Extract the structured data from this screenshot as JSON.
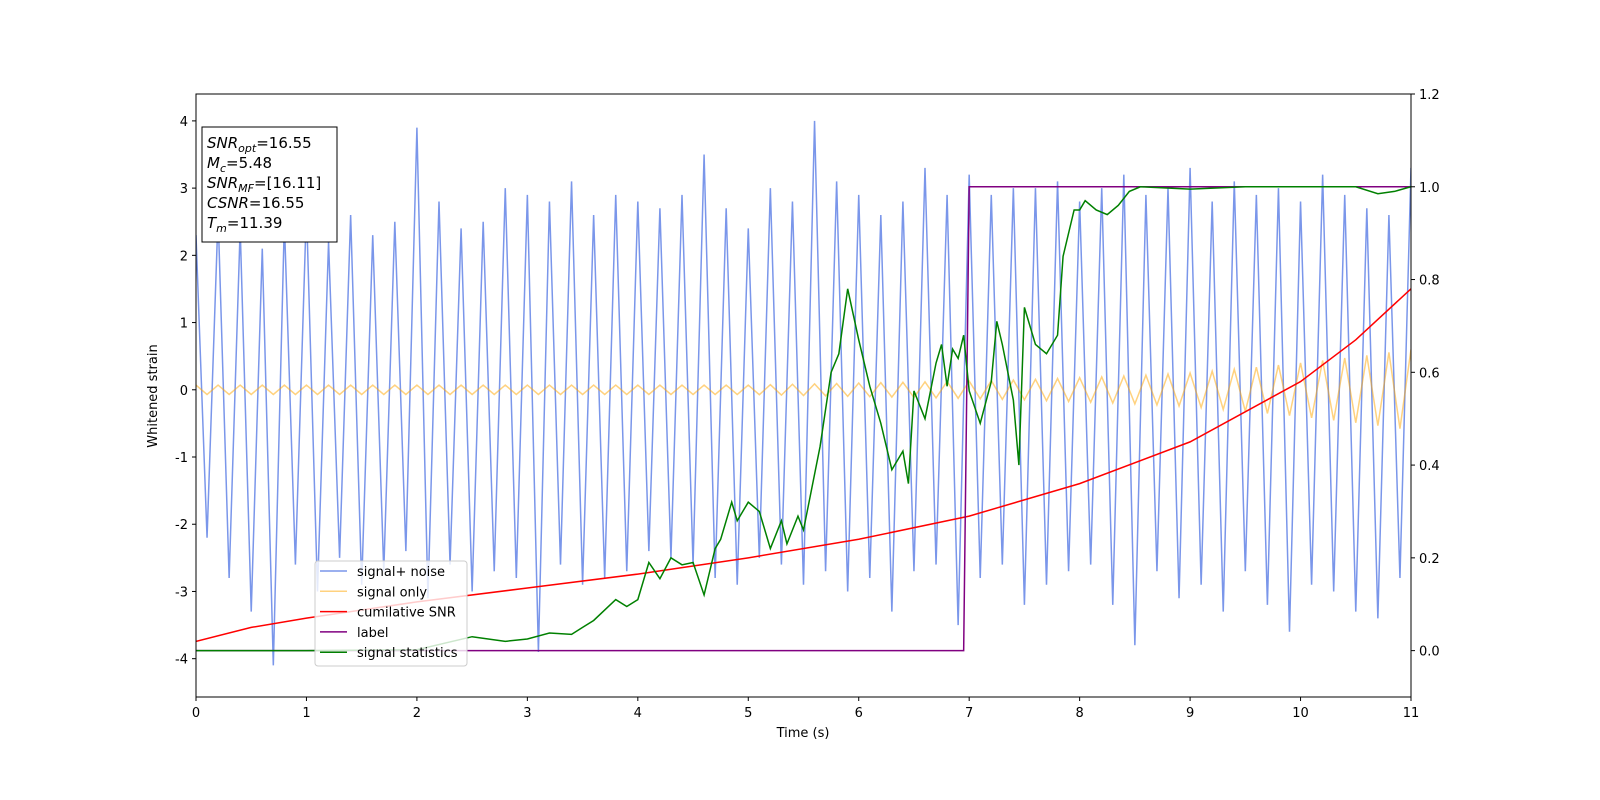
{
  "chart_data": {
    "type": "line",
    "xlabel": "Time (s)",
    "ylabel": "Whitened strain",
    "xlim": [
      0,
      11
    ],
    "xticks": [
      0,
      1,
      2,
      3,
      4,
      5,
      6,
      7,
      8,
      9,
      10,
      11
    ],
    "ylim": [
      -4.57,
      4.4
    ],
    "yticks": [
      -4,
      -3,
      -2,
      -1,
      0,
      1,
      2,
      3,
      4
    ],
    "y2lim": [
      -0.1,
      1.2
    ],
    "y2ticks": [
      {
        "value": 0,
        "label": "0.0"
      },
      0.2,
      0.4,
      0.6,
      0.8,
      {
        "value": 1,
        "label": "1.0"
      },
      1.2
    ],
    "legend": "lower left",
    "x": [
      0,
      0.1,
      0.2,
      0.3,
      0.4,
      0.5,
      0.6,
      0.7,
      0.8,
      0.9,
      1,
      1.1,
      1.2,
      1.3,
      1.4,
      1.5,
      1.6,
      1.7,
      1.8,
      1.9,
      2,
      2.1,
      2.2,
      2.3,
      2.4,
      2.5,
      2.6,
      2.7,
      2.8,
      2.9,
      3,
      3.1,
      3.2,
      3.3,
      3.4,
      3.5,
      3.6,
      3.7,
      3.8,
      3.9,
      4,
      4.1,
      4.2,
      4.3,
      4.4,
      4.5,
      4.6,
      4.7,
      4.8,
      4.9,
      5,
      5.1,
      5.2,
      5.3,
      5.4,
      5.5,
      5.6,
      5.7,
      5.8,
      5.9,
      6,
      6.1,
      6.2,
      6.3,
      6.4,
      6.5,
      6.6,
      6.7,
      6.8,
      6.9,
      7,
      7.1,
      7.2,
      7.3,
      7.4,
      7.5,
      7.6,
      7.7,
      7.8,
      7.9,
      8,
      8.1,
      8.2,
      8.3,
      8.4,
      8.5,
      8.6,
      8.7,
      8.8,
      8.9,
      9,
      9.1,
      9.2,
      9.3,
      9.4,
      9.5,
      9.6,
      9.7,
      9.8,
      9.9,
      10,
      10.1,
      10.2,
      10.3,
      10.4,
      10.5,
      10.6,
      10.7,
      10.8,
      10.9,
      11
    ],
    "series": [
      {
        "name": "signal+ noise",
        "color": "#4169e1",
        "opacity": 0.7,
        "values": [
          2.3,
          -2.2,
          2.6,
          -2.8,
          2.4,
          -3.3,
          2.1,
          -4.1,
          2.5,
          -2.6,
          2.7,
          -3.0,
          2.2,
          -2.5,
          2.6,
          -2.9,
          2.3,
          -2.7,
          2.5,
          -2.4,
          3.9,
          -3.1,
          2.8,
          -2.6,
          2.4,
          -3.0,
          2.5,
          -2.7,
          3.0,
          -2.8,
          2.9,
          -3.9,
          2.8,
          -2.6,
          3.1,
          -2.9,
          2.6,
          -2.8,
          2.9,
          -2.7,
          2.8,
          -2.4,
          2.7,
          -2.5,
          2.9,
          -2.6,
          3.5,
          -2.8,
          2.7,
          -2.9,
          2.4,
          -2.5,
          3.0,
          -2.6,
          2.8,
          -2.9,
          4.0,
          -2.7,
          3.1,
          -3.0,
          2.9,
          -2.8,
          2.6,
          -3.3,
          2.8,
          -2.7,
          3.3,
          -2.6,
          2.9,
          -3.5,
          3.2,
          -2.8,
          2.9,
          -2.6,
          3.0,
          -3.2,
          3.0,
          -2.9,
          3.1,
          -2.7,
          2.8,
          -2.6,
          3.0,
          -3.2,
          3.2,
          -3.8,
          2.9,
          -2.7,
          3.0,
          -3.1,
          3.3,
          -2.9,
          2.8,
          -3.3,
          3.1,
          -2.7,
          2.9,
          -3.2,
          3.0,
          -3.6,
          2.8,
          -2.9,
          3.2,
          -3.0,
          2.9,
          -3.3,
          2.7,
          -3.4,
          2.6,
          -2.8,
          3.3
        ]
      },
      {
        "name": "signal only",
        "color": "#ffa500",
        "opacity": 0.5,
        "values": [
          0.07,
          -0.07,
          0.07,
          -0.07,
          0.07,
          -0.07,
          0.07,
          -0.07,
          0.07,
          -0.07,
          0.07,
          -0.07,
          0.07,
          -0.07,
          0.07,
          -0.07,
          0.07,
          -0.07,
          0.07,
          -0.07,
          0.07,
          -0.07,
          0.07,
          -0.07,
          0.07,
          -0.07,
          0.07,
          -0.07,
          0.07,
          -0.07,
          0.07,
          -0.07,
          0.07,
          -0.07,
          0.07,
          -0.07,
          0.07,
          -0.07,
          0.07,
          -0.07,
          0.07,
          -0.07,
          0.07,
          -0.07,
          0.07,
          -0.07,
          0.07,
          -0.07,
          0.07,
          -0.07,
          0.07,
          -0.073,
          0.076,
          -0.079,
          0.082,
          -0.085,
          0.088,
          -0.091,
          0.094,
          -0.097,
          0.1,
          -0.103,
          0.106,
          -0.109,
          0.112,
          -0.115,
          0.118,
          -0.121,
          0.124,
          -0.127,
          0.13,
          -0.134,
          0.138,
          -0.142,
          0.146,
          -0.15,
          0.156,
          -0.162,
          0.168,
          -0.174,
          0.18,
          -0.186,
          0.192,
          -0.198,
          0.204,
          -0.21,
          0.218,
          -0.226,
          0.234,
          -0.242,
          0.25,
          -0.264,
          0.278,
          -0.292,
          0.306,
          -0.32,
          0.336,
          -0.352,
          0.368,
          -0.384,
          0.4,
          -0.418,
          0.436,
          -0.454,
          0.472,
          -0.49,
          0.512,
          -0.534,
          0.556,
          -0.578,
          0.6
        ]
      },
      {
        "name": "cumilative SNR",
        "color": "#ff0000",
        "axis": "y2",
        "x": [
          0,
          0.5,
          1,
          2,
          3,
          4,
          5,
          6,
          7,
          8,
          9,
          10,
          10.5,
          11
        ],
        "values": [
          0.02,
          0.05,
          0.07,
          0.105,
          0.135,
          0.165,
          0.2,
          0.24,
          0.29,
          0.36,
          0.45,
          0.58,
          0.67,
          0.78
        ]
      },
      {
        "name": "label",
        "color": "#800080",
        "axis": "y2",
        "x": [
          0,
          6.95,
          7.0,
          11
        ],
        "values": [
          0,
          0,
          1,
          1
        ]
      },
      {
        "name": "signal statistics",
        "color": "#008000",
        "axis": "y2",
        "x": [
          0,
          1,
          2,
          2.5,
          2.8,
          3,
          3.2,
          3.4,
          3.5,
          3.6,
          3.8,
          3.9,
          4,
          4.1,
          4.2,
          4.3,
          4.4,
          4.5,
          4.6,
          4.7,
          4.75,
          4.85,
          4.9,
          5,
          5.1,
          5.2,
          5.3,
          5.35,
          5.45,
          5.5,
          5.65,
          5.75,
          5.82,
          5.9,
          6,
          6.1,
          6.2,
          6.3,
          6.4,
          6.45,
          6.5,
          6.6,
          6.7,
          6.75,
          6.8,
          6.85,
          6.9,
          6.95,
          7,
          7.1,
          7.2,
          7.25,
          7.3,
          7.4,
          7.45,
          7.5,
          7.6,
          7.7,
          7.8,
          7.85,
          7.95,
          8,
          8.05,
          8.15,
          8.25,
          8.35,
          8.45,
          8.55,
          9,
          9.5,
          10.5,
          10.7,
          10.85,
          11
        ],
        "values": [
          0,
          0,
          0.002,
          0.03,
          0.02,
          0.025,
          0.038,
          0.035,
          0.05,
          0.065,
          0.11,
          0.095,
          0.11,
          0.19,
          0.155,
          0.2,
          0.185,
          0.19,
          0.12,
          0.22,
          0.24,
          0.32,
          0.28,
          0.32,
          0.3,
          0.22,
          0.28,
          0.23,
          0.29,
          0.26,
          0.44,
          0.6,
          0.64,
          0.78,
          0.67,
          0.57,
          0.49,
          0.39,
          0.43,
          0.36,
          0.56,
          0.5,
          0.62,
          0.66,
          0.57,
          0.65,
          0.63,
          0.68,
          0.56,
          0.49,
          0.58,
          0.71,
          0.66,
          0.54,
          0.4,
          0.74,
          0.66,
          0.64,
          0.68,
          0.85,
          0.95,
          0.95,
          0.97,
          0.95,
          0.94,
          0.96,
          0.99,
          1.0,
          0.995,
          1.0,
          1.0,
          0.985,
          0.99,
          1.0
        ]
      }
    ],
    "annotations": [
      {
        "base": "SNR",
        "sub": "opt",
        "text": "=16.55"
      },
      {
        "base": "M",
        "sub": "c",
        "text": "=5.48"
      },
      {
        "base": "SNR",
        "sub": "MF",
        "text": "=[16.11]"
      },
      {
        "base": "CSNR",
        "text": "=16.55"
      },
      {
        "base": "T",
        "sub": "m",
        "text": "=11.39"
      }
    ]
  }
}
